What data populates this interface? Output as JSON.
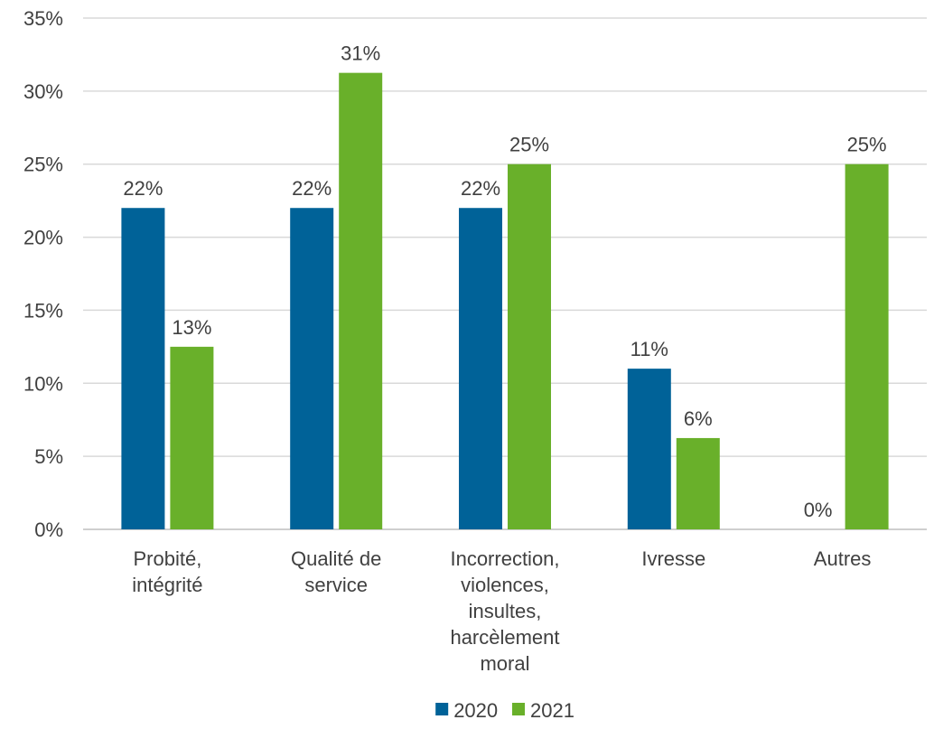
{
  "chart_data": {
    "type": "bar",
    "title": "",
    "xlabel": "",
    "ylabel": "",
    "ylim": [
      0,
      35
    ],
    "y_ticks": [
      0,
      5,
      10,
      15,
      20,
      25,
      30,
      35
    ],
    "y_tick_labels": [
      "0%",
      "5%",
      "10%",
      "15%",
      "20%",
      "25%",
      "30%",
      "35%"
    ],
    "grid": "horizontal",
    "legend_position": "bottom",
    "categories": [
      [
        "Probité,",
        "intégrité"
      ],
      [
        "Qualité de",
        "service"
      ],
      [
        "Incorrection,",
        "violences,",
        "insultes,",
        "harcèlement",
        "moral"
      ],
      [
        "Ivresse"
      ],
      [
        "Autres"
      ]
    ],
    "series": [
      {
        "name": "2020",
        "color": "#006298",
        "values": [
          22,
          22,
          22,
          11,
          0
        ],
        "labels": [
          "22%",
          "22%",
          "22%",
          "11%",
          "0%"
        ]
      },
      {
        "name": "2021",
        "color": "#69b02a",
        "values": [
          12.5,
          31.25,
          25,
          6.25,
          25
        ],
        "labels": [
          "13%",
          "31%",
          "25%",
          "6%",
          "25%"
        ]
      }
    ]
  }
}
